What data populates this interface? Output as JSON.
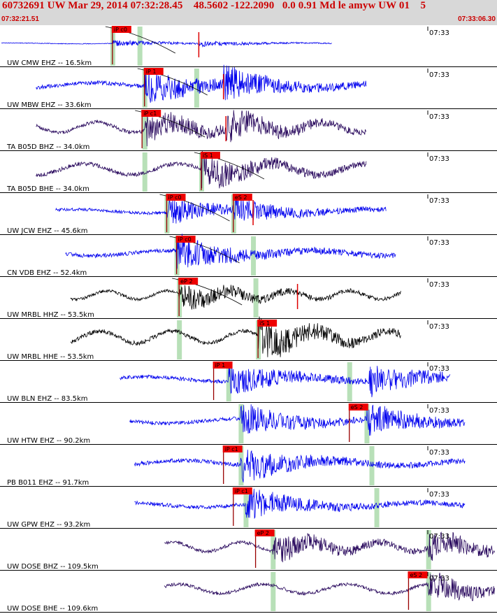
{
  "header": {
    "title": "60732691 UW Mar 29, 2014 07:32:28.45    48.5602 -122.2090   0.0 0.91 Md le amyw UW 01    5",
    "time_start": "07:32:21.51",
    "time_end": "07:33:06.30"
  },
  "colors": {
    "header_bg": "#d8d8d8",
    "header_text": "#cc0000",
    "pick_bg": "#ee0000",
    "window": "#b8e0b8",
    "blue": "#0000ee",
    "purple": "#2a0a5e",
    "black": "#000000"
  },
  "chart_data": {
    "type": "line",
    "x_axis": {
      "start": "07:32:21.51",
      "end": "07:33:06.30",
      "unit": "time"
    },
    "tick_label": "07:33",
    "traces": [
      {
        "label": "UW CMW EHZ -- 16.5km",
        "color": "blue",
        "start": 0.0,
        "end": 0.67,
        "amp": 4,
        "picks": [
          {
            "label": "iP c0",
            "x": 0.225
          }
        ],
        "windows": [
          0.225,
          0.28
        ],
        "events": [
          0.225,
          0.4
        ],
        "ticks": [
          0.4
        ]
      },
      {
        "label": "UW MBW EHZ -- 33.6km",
        "color": "blue",
        "start": 0.07,
        "end": 0.74,
        "amp": 24,
        "picks": [
          {
            "label": "iP 1",
            "x": 0.29
          }
        ],
        "windows": [
          0.29,
          0.395
        ],
        "events": [
          0.29,
          0.45
        ],
        "ticks": [
          0.45
        ]
      },
      {
        "label": "TA B05D BHZ -- 34.0km",
        "color": "purple",
        "start": 0.07,
        "end": 0.74,
        "amp": 22,
        "picks": [
          {
            "label": "iP c1",
            "x": 0.285
          }
        ],
        "windows": [
          0.29
        ],
        "events": [
          0.29,
          0.455
        ],
        "ticks": [
          0.455
        ]
      },
      {
        "label": "TA B05D BHE -- 34.0km",
        "color": "purple",
        "start": 0.07,
        "end": 0.74,
        "amp": 24,
        "picks": [
          {
            "label": "iS 1",
            "x": 0.405
          }
        ],
        "windows": [
          0.29,
          0.405
        ],
        "events": [
          0.405
        ]
      },
      {
        "label": "UW JCW EHZ -- 45.6km",
        "color": "blue",
        "start": 0.11,
        "end": 0.78,
        "amp": 18,
        "picks": [
          {
            "label": "iP c0",
            "x": 0.335
          },
          {
            "label": "eS 2",
            "x": 0.47
          }
        ],
        "windows": [
          0.335,
          0.47
        ],
        "events": [
          0.335,
          0.47
        ],
        "ticks": [
          0.51
        ]
      },
      {
        "label": "CN VDB EHZ -- 52.4km",
        "color": "blue",
        "start": 0.13,
        "end": 0.8,
        "amp": 24,
        "picks": [
          {
            "label": "iP c0",
            "x": 0.355
          }
        ],
        "windows": [
          0.355,
          0.51
        ],
        "events": [
          0.355
        ]
      },
      {
        "label": "UW MRBL HHZ -- 53.5km",
        "color": "black",
        "start": 0.14,
        "end": 0.81,
        "amp": 18,
        "picks": [
          {
            "label": "eP 2",
            "x": 0.36
          }
        ],
        "windows": [
          0.36,
          0.515
        ],
        "events": [
          0.36
        ],
        "ticks": [
          0.6
        ]
      },
      {
        "label": "UW MRBL HHE -- 53.5km",
        "color": "black",
        "start": 0.14,
        "end": 0.81,
        "amp": 26,
        "picks": [
          {
            "label": "iS 1",
            "x": 0.52
          }
        ],
        "windows": [
          0.36,
          0.52
        ],
        "events": [
          0.52
        ]
      },
      {
        "label": "UW BLN EHZ -- 83.5km",
        "color": "blue",
        "start": 0.24,
        "end": 0.91,
        "amp": 22,
        "picks": [
          {
            "label": "iP 1",
            "x": 0.43
          }
        ],
        "windows": [
          0.46,
          0.705
        ],
        "events": [
          0.46,
          0.745
        ]
      },
      {
        "label": "UW HTW EHZ -- 90.2km",
        "color": "blue",
        "start": 0.26,
        "end": 0.94,
        "amp": 22,
        "picks": [
          {
            "label": "eS 2",
            "x": 0.705
          }
        ],
        "windows": [
          0.485,
          0.74
        ],
        "events": [
          0.485,
          0.74
        ]
      },
      {
        "label": "PB B011 EHZ -- 91.7km",
        "color": "blue",
        "start": 0.27,
        "end": 0.94,
        "amp": 24,
        "picks": [
          {
            "label": "iP c1",
            "x": 0.45
          }
        ],
        "windows": [
          0.485,
          0.75
        ],
        "events": [
          0.485
        ]
      },
      {
        "label": "UW GPW EHZ -- 93.2km",
        "color": "blue",
        "start": 0.27,
        "end": 0.94,
        "amp": 22,
        "picks": [
          {
            "label": "iP c1",
            "x": 0.47
          }
        ],
        "windows": [
          0.495,
          0.76
        ],
        "events": [
          0.495
        ]
      },
      {
        "label": "UW DOSE BHZ -- 109.5km",
        "color": "purple",
        "start": 0.33,
        "end": 1.0,
        "amp": 20,
        "picks": [
          {
            "label": "eP 2",
            "x": 0.515
          }
        ],
        "windows": [
          0.55,
          0.865
        ],
        "events": [
          0.55,
          0.865
        ]
      },
      {
        "label": "UW DOSE BHE -- 109.6km",
        "color": "purple",
        "start": 0.33,
        "end": 1.0,
        "amp": 20,
        "picks": [
          {
            "label": "eS 2",
            "x": 0.825
          }
        ],
        "windows": [
          0.55,
          0.865
        ],
        "events": [
          0.865
        ]
      }
    ]
  }
}
